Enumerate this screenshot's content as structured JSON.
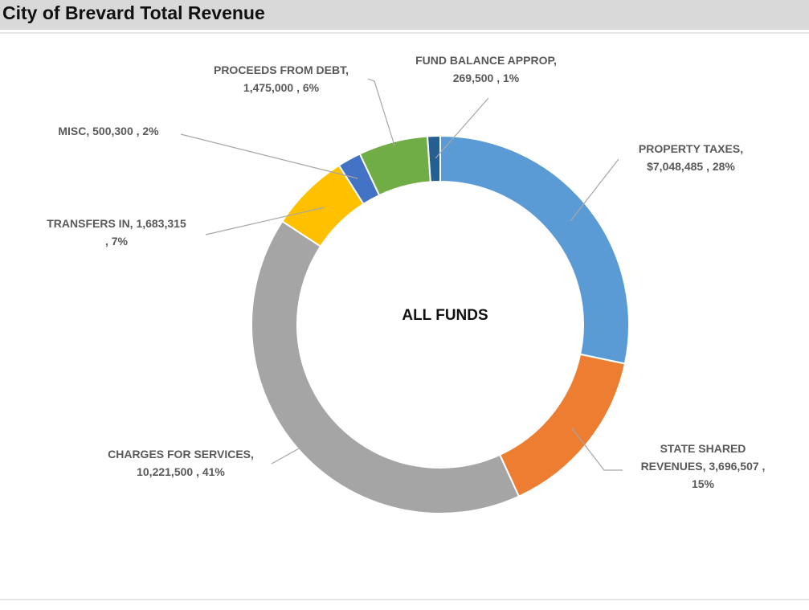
{
  "header": {
    "title": "City of Brevard Total Revenue"
  },
  "chart_data": {
    "type": "pie",
    "variant": "doughnut",
    "center_label": "ALL FUNDS",
    "start_angle_deg": 0,
    "slices": [
      {
        "name": "PROPERTY TAXES",
        "value": 7048485,
        "percent": 28,
        "color": "#5b9bd5",
        "label_lines": [
          "PROPERTY TAXES,",
          "$7,048,485 , 28%"
        ]
      },
      {
        "name": "STATE SHARED REVENUES",
        "value": 3696507,
        "percent": 15,
        "color": "#ed7d31",
        "label_lines": [
          "STATE SHARED",
          "REVENUES,  3,696,507 ,",
          "15%"
        ]
      },
      {
        "name": "CHARGES FOR SERVICES",
        "value": 10221500,
        "percent": 41,
        "color": "#a5a5a5",
        "label_lines": [
          "CHARGES FOR SERVICES,",
          "10,221,500 , 41%"
        ]
      },
      {
        "name": "TRANSFERS IN",
        "value": 1683315,
        "percent": 7,
        "color": "#ffc000",
        "label_lines": [
          "TRANSFERS IN,  1,683,315",
          ", 7%"
        ]
      },
      {
        "name": "MISC",
        "value": 500300,
        "percent": 2,
        "color": "#4472c4",
        "label_lines": [
          "MISC,  500,300 , 2%"
        ]
      },
      {
        "name": "PROCEEDS FROM DEBT",
        "value": 1475000,
        "percent": 6,
        "color": "#70ad47",
        "label_lines": [
          "PROCEEDS FROM DEBT,",
          "1,475,000 , 6%"
        ]
      },
      {
        "name": "FUND BALANCE APPROP",
        "value": 269500,
        "percent": 1,
        "color": "#255e91",
        "label_lines": [
          "FUND BALANCE APPROP,",
          "269,500 , 1%"
        ]
      }
    ]
  }
}
